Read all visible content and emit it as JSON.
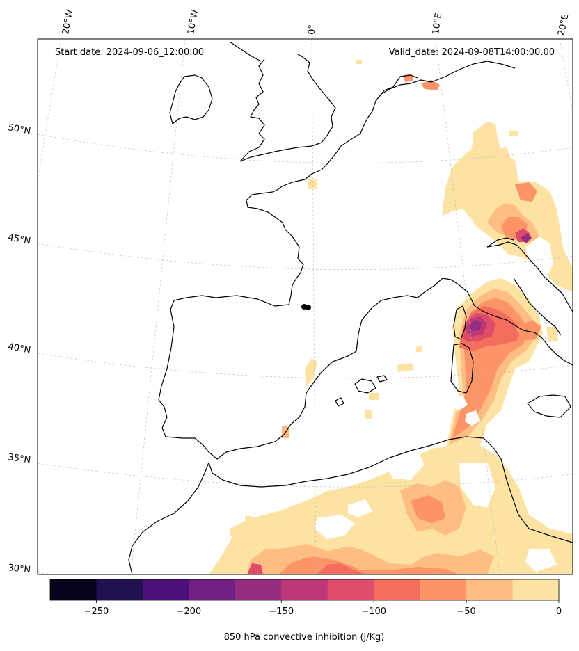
{
  "header": {
    "start_date": "Start date: 2024-09-06_12:00:00",
    "valid_date": "Valid_date: 2024-09-08T14:00:00.00"
  },
  "lon_labels": [
    "20°W",
    "10°W",
    "0°",
    "10°E",
    "20°E"
  ],
  "lat_labels": [
    "50°N",
    "45°N",
    "40°N",
    "35°N",
    "30°N"
  ],
  "colorbar": {
    "title": "850 hPa convective inhibition (j/Kg)",
    "tick_labels": [
      "−250",
      "−200",
      "−150",
      "−100",
      "−50",
      "0"
    ],
    "tick_values": [
      -250,
      -200,
      -150,
      -100,
      -50,
      0
    ],
    "range": [
      -275,
      0
    ],
    "levels": [
      -275,
      -250,
      -225,
      -200,
      -175,
      -150,
      -125,
      -100,
      -75,
      -50,
      -25,
      0
    ],
    "colors": [
      "#05041b",
      "#221150",
      "#4d0f7a",
      "#711f81",
      "#962d7f",
      "#bc3878",
      "#de4c69",
      "#f56d5c",
      "#fd9467",
      "#febd83",
      "#fce3a3"
    ]
  },
  "fill_colors": {
    "cin_0_25": "#fce3a3",
    "cin_25_50": "#febd83",
    "cin_50_75": "#fd9467",
    "cin_75_100": "#f56d5c",
    "cin_100_125": "#de4c69",
    "cin_125_150": "#bc3878",
    "cin_150_175": "#962d7f"
  }
}
